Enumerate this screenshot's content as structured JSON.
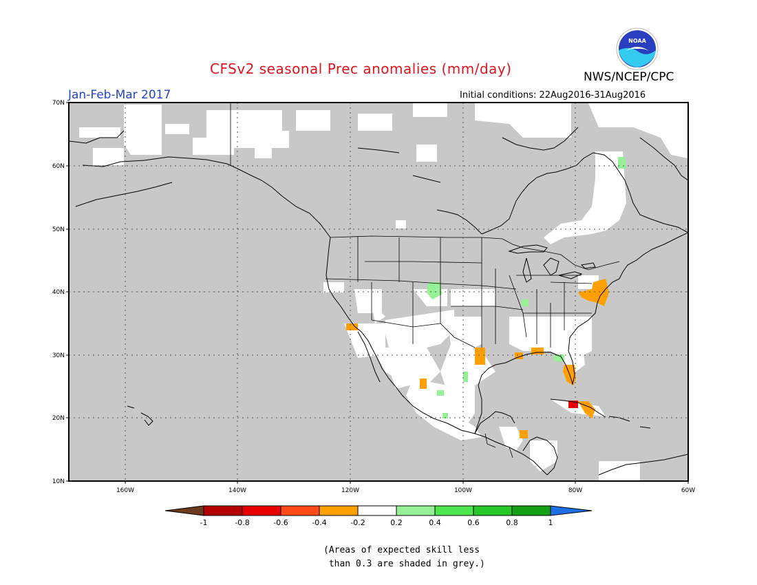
{
  "title": "CFSv2 seasonal Prec anomalies (mm/day)",
  "period": "Jan-Feb-Mar 2017",
  "initial_conditions": "Initial conditions: 22Aug2016-31Aug2016",
  "agency": "NWS/NCEP/CPC",
  "logo_text": "NOAA",
  "note_line1": "(Areas of expected skill less",
  "note_line2": " than 0.3 are shaded in grey.)",
  "colors": {
    "low_skill_grey": "#c8c8c8",
    "near_zero_white": "#ffffff",
    "below_-1": "#6e3a1e",
    "-1_to_-0.8": "#b40000",
    "-0.8_to_-0.6": "#e60000",
    "-0.6_to_-0.4": "#ff4a1a",
    "-0.4_to_-0.2": "#ff9f00",
    "0.2_to_0.4": "#96f096",
    "0.4_to_0.6": "#50e650",
    "0.6_to_0.8": "#28c828",
    "0.8_to_1": "#14a014",
    "above_1": "#1e6ee6"
  },
  "axes": {
    "lat_labels": [
      "70N",
      "60N",
      "50N",
      "40N",
      "30N",
      "20N",
      "10N"
    ],
    "lon_labels": [
      "160W",
      "140W",
      "120W",
      "100W",
      "80W",
      "60W"
    ]
  },
  "colorbar": {
    "ticks": [
      "-1",
      "-0.8",
      "-0.6",
      "-0.4",
      "-0.2",
      "0.2",
      "0.4",
      "0.6",
      "0.8",
      "1"
    ]
  },
  "map_data": {
    "region": "North America",
    "lat_range": [
      10,
      70
    ],
    "lon_range": [
      -170,
      -60
    ],
    "anomaly_patches": [
      {
        "area": "Mid-Atlantic / Chesapeake",
        "class": "-0.4 to -0.2"
      },
      {
        "area": "Florida",
        "class": "-0.4 to -0.2"
      },
      {
        "area": "Gulf coast Louisiana",
        "class": "-0.4 to -0.2"
      },
      {
        "area": "South Texas coast",
        "class": "-0.4 to -0.2"
      },
      {
        "area": "Southern California coast",
        "class": "-0.4 to -0.2"
      },
      {
        "area": "Western Mexico",
        "class": "-0.4 to -0.2"
      },
      {
        "area": "Central America",
        "class": "-0.4 to -0.2"
      },
      {
        "area": "Cuba west",
        "class": "-0.8 to -0.6"
      },
      {
        "area": "Cuba east",
        "class": "-0.4 to -0.2"
      },
      {
        "area": "Colorado",
        "class": "0.2 to 0.4"
      },
      {
        "area": "Northern Quebec",
        "class": "0.2 to 0.4"
      },
      {
        "area": "Illinois/Kentucky",
        "class": "0.2 to 0.4"
      },
      {
        "area": "Eastern Mexico",
        "class": "0.2 to 0.4"
      }
    ]
  }
}
